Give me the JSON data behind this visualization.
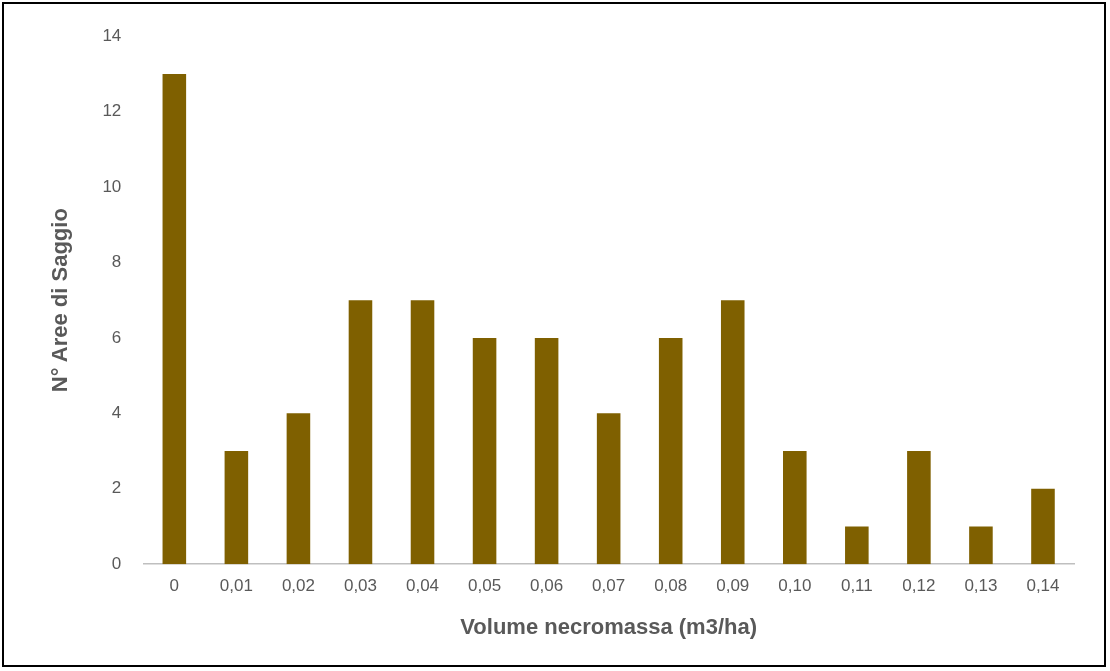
{
  "chart_data": {
    "type": "bar",
    "xlabel": "Volume necromassa (m3/ha)",
    "ylabel": "N° Aree di Saggio",
    "categories": [
      "0",
      "0,01",
      "0,02",
      "0,03",
      "0,04",
      "0,05",
      "0,06",
      "0,07",
      "0,08",
      "0,09",
      "0,10",
      "0,11",
      "0,12",
      "0,13",
      "0,14"
    ],
    "values": [
      13,
      3,
      4,
      7,
      7,
      6,
      6,
      4,
      6,
      7,
      3,
      1,
      3,
      1,
      2
    ],
    "color": "#7f6000",
    "ylim": [
      0,
      14
    ],
    "yticks": [
      0,
      2,
      4,
      6,
      8,
      10,
      12,
      14
    ]
  }
}
